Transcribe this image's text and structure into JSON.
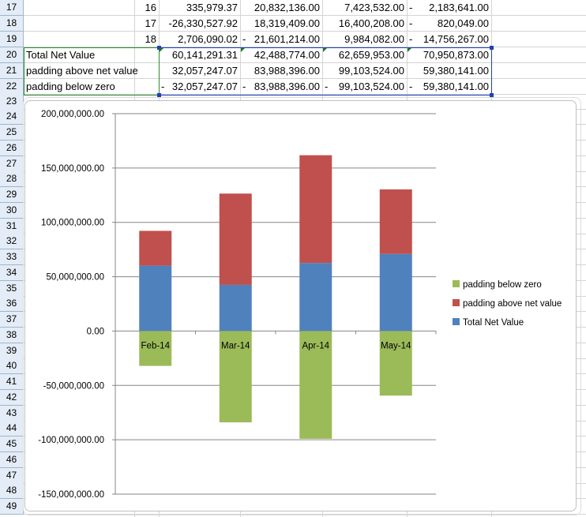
{
  "sheet": {
    "rows": [
      {
        "num": "17",
        "b": "16",
        "c": "335,979.37",
        "d": "20,832,136.00",
        "e": "7,423,532.00",
        "f": "2,183,641.00",
        "e_dash": "",
        "f_dash": "-"
      },
      {
        "num": "18",
        "b": "17",
        "c": "-26,330,527.92",
        "d": "18,319,409.00",
        "e": "16,400,208.00",
        "f": "820,049.00",
        "e_dash": "",
        "f_dash": "-"
      },
      {
        "num": "19",
        "b": "18",
        "c": "2,706,090.02",
        "d": "21,601,214.00",
        "e": "9,984,082.00",
        "f": "14,756,267.00",
        "d_dash": "-",
        "e_dash": "",
        "f_dash": "-"
      },
      {
        "num": "20",
        "a": "Total Net Value",
        "c": "60,141,291.31",
        "d": "42,488,774.00",
        "e": "62,659,953.00",
        "f": "70,950,873.00"
      },
      {
        "num": "21",
        "a": "padding above net value",
        "c": "32,057,247.07",
        "d": "83,988,396.00",
        "e": "99,103,524.00",
        "f": "59,380,141.00"
      },
      {
        "num": "22",
        "a": "padding below zero",
        "c": "32,057,247.07",
        "d": "83,988,396.00",
        "e": "99,103,524.00",
        "f": "59,380,141.00",
        "c_dash": "-",
        "d_dash": "-",
        "e_dash": "-",
        "f_dash": "-"
      }
    ],
    "row_numbers": [
      "23",
      "24",
      "25",
      "26",
      "27",
      "28",
      "29",
      "30",
      "31",
      "32",
      "33",
      "34",
      "35",
      "36",
      "37",
      "38",
      "39",
      "40",
      "41",
      "42",
      "43",
      "44",
      "45",
      "46",
      "47",
      "48",
      "49"
    ]
  },
  "chart_data": {
    "type": "bar",
    "stacked": true,
    "categories": [
      "Feb-14",
      "Mar-14",
      "Apr-14",
      "May-14"
    ],
    "series": [
      {
        "name": "Total Net Value",
        "values": [
          60141291.31,
          42488774.0,
          62659953.0,
          70950873.0
        ],
        "color": "#4f81bd"
      },
      {
        "name": "padding above net value",
        "values": [
          32057247.07,
          83988396.0,
          99103524.0,
          59380141.0
        ],
        "color": "#c0504d"
      },
      {
        "name": "padding below zero",
        "values": [
          -32057247.07,
          -83988396.0,
          -99103524.0,
          -59380141.0
        ],
        "color": "#9bbb59"
      }
    ],
    "ylim": [
      -150000000,
      200000000
    ],
    "yticks": [
      {
        "value": 200000000,
        "label": "200,000,000.00"
      },
      {
        "value": 150000000,
        "label": "150,000,000.00"
      },
      {
        "value": 100000000,
        "label": "100,000,000.00"
      },
      {
        "value": 50000000,
        "label": "50,000,000.00"
      },
      {
        "value": 0,
        "label": "0.00"
      },
      {
        "value": -50000000,
        "label": "-50,000,000.00"
      },
      {
        "value": -100000000,
        "label": "-100,000,000.00"
      },
      {
        "value": -150000000,
        "label": "-150,000,000.00"
      }
    ],
    "legend": [
      "padding below zero",
      "padding above net value",
      "Total Net Value"
    ],
    "legend_position": "right",
    "grid": true,
    "title": "",
    "xlabel": "",
    "ylabel": ""
  }
}
